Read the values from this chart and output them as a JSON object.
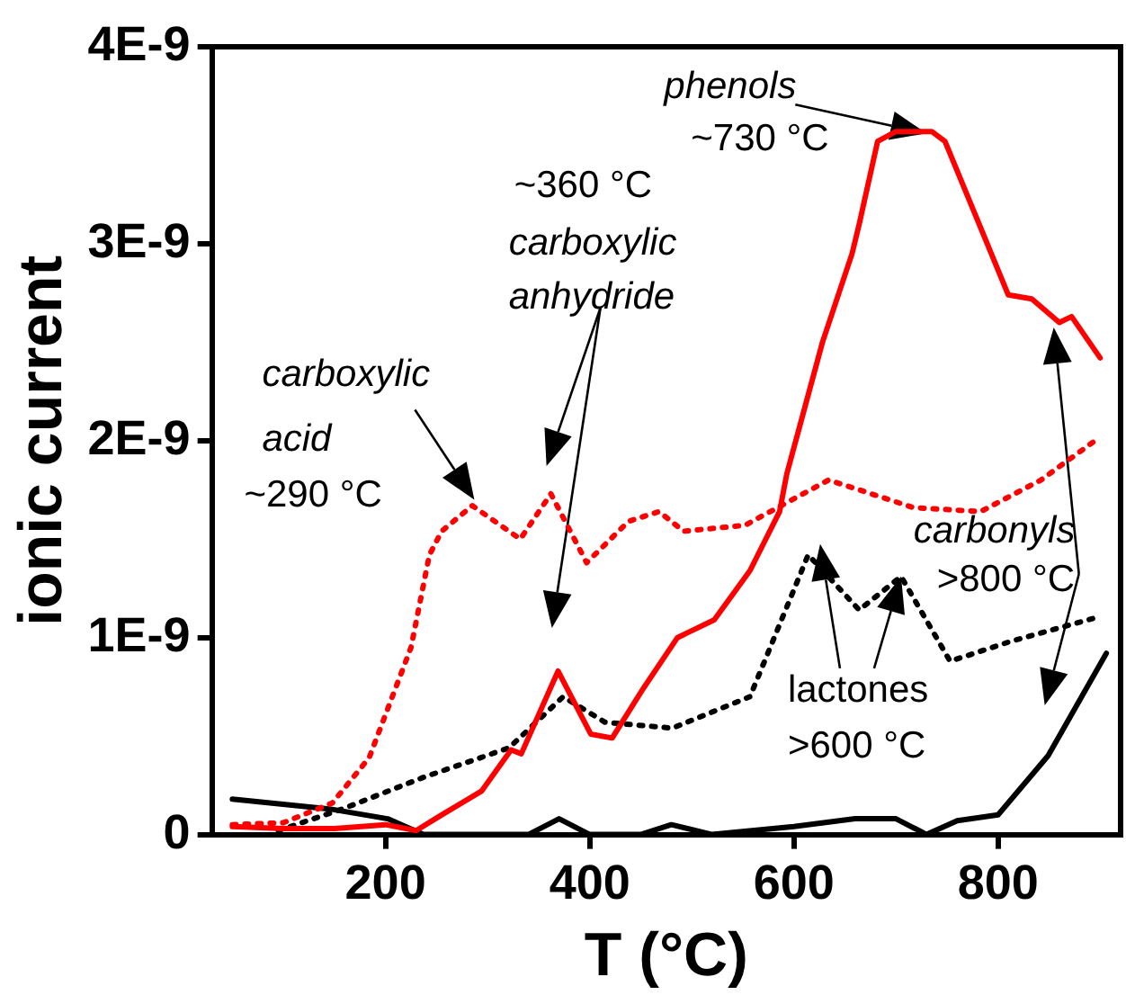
{
  "chart_data": {
    "type": "line",
    "xlabel": "T (°C)",
    "ylabel": "ionic current",
    "xlim": [
      30,
      920
    ],
    "xticks": [
      {
        "value": 200,
        "label": "200"
      },
      {
        "value": 400,
        "label": "400"
      },
      {
        "value": 600,
        "label": "600"
      },
      {
        "value": 800,
        "label": "800"
      }
    ],
    "ylim": [
      0,
      4e-09
    ],
    "yticks": [
      0,
      {
        "value": 1e-09,
        "label": "1E-9"
      },
      {
        "value": 2e-09,
        "label": "2E-9"
      },
      {
        "value": 3e-09,
        "label": "3E-9"
      },
      {
        "value": 4e-09,
        "label": "4E-9"
      }
    ],
    "grid": false,
    "legend": false,
    "marker": "none",
    "series": [
      {
        "color": "#ff0000",
        "line_style": "solid",
        "x": [
          50,
          100,
          150,
          200,
          230,
          252,
          294,
          323,
          333,
          369,
          401,
          422,
          451,
          486,
          522,
          557,
          586,
          593,
          628,
          657,
          664,
          682,
          700,
          735,
          748,
          783,
          810,
          833,
          860,
          872,
          900
        ],
        "values": [
          4e-11,
          3e-11,
          3e-11,
          5e-11,
          2e-11,
          9e-11,
          2.2e-10,
          4.3e-10,
          4.1e-10,
          8.3e-10,
          5.1e-10,
          4.9e-10,
          7.3e-10,
          1e-09,
          1.09e-09,
          1.34e-09,
          1.64e-09,
          1.83e-09,
          2.5e-09,
          2.95e-09,
          3.1e-09,
          3.52e-09,
          3.57e-09,
          3.57e-09,
          3.52e-09,
          3.08e-09,
          2.74e-09,
          2.72e-09,
          2.6e-09,
          2.63e-09,
          2.42e-09
        ]
      },
      {
        "color": "#ff0000",
        "line_style": "dotted",
        "x": [
          50,
          100,
          148,
          184,
          225,
          243,
          255,
          285,
          332,
          362,
          397,
          438,
          468,
          492,
          552,
          634,
          664,
          717,
          783,
          842,
          895
        ],
        "values": [
          5e-11,
          6e-11,
          1.6e-10,
          3.9e-10,
          9.5e-10,
          1.42e-09,
          1.54e-09,
          1.67e-09,
          1.5e-09,
          1.73e-09,
          1.38e-09,
          1.59e-09,
          1.64e-09,
          1.54e-09,
          1.57e-09,
          1.8e-09,
          1.75e-09,
          1.66e-09,
          1.64e-09,
          1.8e-09,
          2e-09
        ]
      },
      {
        "color": "#000000",
        "line_style": "dotted",
        "x": [
          95,
          158,
          237,
          321,
          374,
          415,
          481,
          557,
          614,
          664,
          705,
          753,
          812,
          895
        ],
        "values": [
          2e-11,
          1.3e-10,
          2.9e-10,
          4.4e-10,
          7e-10,
          5.7e-10,
          5.4e-10,
          7e-10,
          1.42e-09,
          1.14e-09,
          1.31e-09,
          8.8e-10,
          9.8e-10,
          1.1e-09
        ]
      },
      {
        "color": "#000000",
        "line_style": "solid",
        "x": [
          50,
          145,
          202,
          237,
          340,
          370,
          400,
          450,
          480,
          520,
          600,
          660,
          700,
          730,
          760,
          800,
          849,
          906
        ],
        "values": [
          1.8e-10,
          1.3e-10,
          8e-11,
          0,
          0,
          8e-11,
          0,
          0,
          5e-11,
          0,
          4e-11,
          8e-11,
          8e-11,
          0,
          7e-11,
          1e-10,
          4e-10,
          9.2e-10
        ]
      }
    ],
    "annotations": [
      {
        "text": "carboxylic\nacid\n~290 °C",
        "x": 287,
        "y": 1.7e-09
      },
      "~360 °C\ncarboxylic\nanhydride",
      {
        "text": "phenols\n~730 °C",
        "x": 730,
        "y": 3.56e-09
      },
      "carbonyls\n>800 °C",
      {
        "text": "lactones\n>600 °C",
        "x": 705,
        "y": 1.31e-09
      }
    ]
  }
}
